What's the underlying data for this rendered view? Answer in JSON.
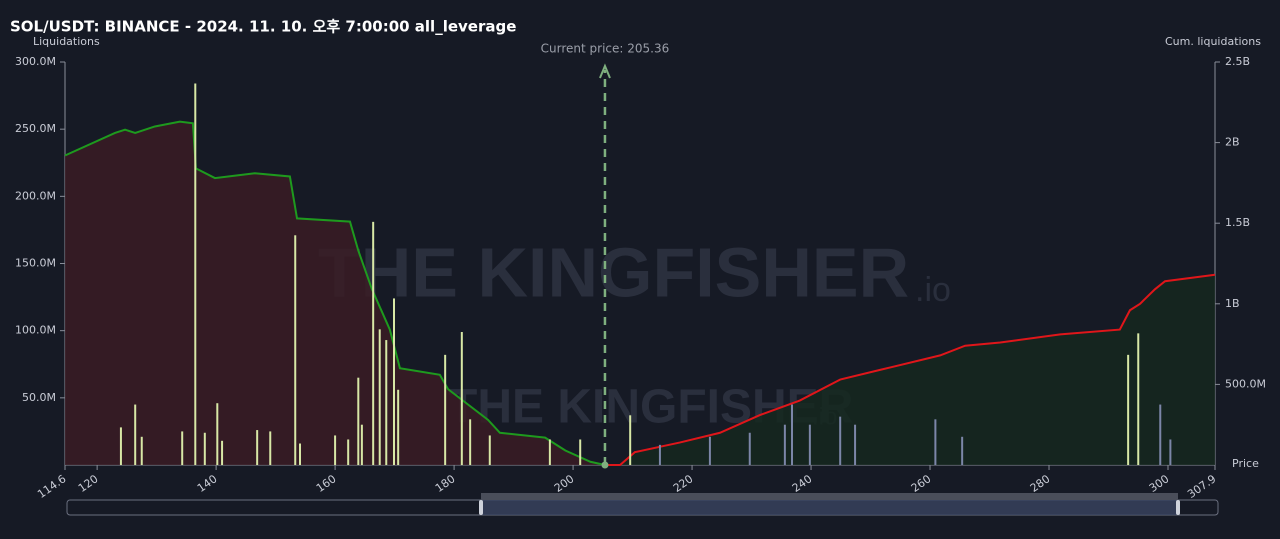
{
  "chart_data": {
    "type": "bar",
    "title": "SOL/USDT: BINANCE - 2024. 11. 10. 오후 7:00:00 all_leverage",
    "y_label": "Liquidations",
    "y2_label": "Cum. liquidations",
    "x_label": "Price",
    "annotation": "Current price: 205.36",
    "current_price": 205.36,
    "watermark": "THE KINGFISHER",
    "watermark_suffix": ".io",
    "xlim": [
      114.6,
      307.9
    ],
    "xticks": [
      114.6,
      120,
      140,
      160,
      180,
      200,
      220,
      240,
      260,
      280,
      300,
      307.9
    ],
    "ylim": [
      0,
      300000000
    ],
    "yticks": [
      {
        "value": 50000000,
        "label": "50.0M"
      },
      {
        "value": 100000000,
        "label": "100.0M"
      },
      {
        "value": 150000000,
        "label": "150.0M"
      },
      {
        "value": 200000000,
        "label": "200.0M"
      },
      {
        "value": 250000000,
        "label": "250.0M"
      },
      {
        "value": 300000000,
        "label": "300.0M"
      }
    ],
    "y2lim": [
      0,
      2500000000
    ],
    "y2ticks": [
      {
        "value": 500000000,
        "label": "500.0M"
      },
      {
        "value": 1000000000,
        "label": "1B"
      },
      {
        "value": 1500000000,
        "label": "1.5B"
      },
      {
        "value": 2000000000,
        "label": "2B"
      },
      {
        "value": 2500000000,
        "label": "2.5B"
      }
    ],
    "series": [
      {
        "type": "bar",
        "color": "#d8e8a6",
        "x": [
          124.0,
          126.4,
          127.5,
          134.3,
          136.5,
          138.1,
          140.2,
          141.0,
          146.9,
          149.1,
          153.3,
          154.1,
          160.0,
          162.2,
          163.9,
          164.5,
          166.4,
          167.5,
          168.6,
          169.9,
          170.6,
          178.5,
          181.3,
          182.7,
          186.0,
          196.1,
          201.2,
          209.6,
          293.3,
          295.0
        ],
        "values": [
          28000000,
          45000000,
          21000000,
          25000000,
          284000000,
          24000000,
          46000000,
          18000000,
          26000000,
          25000000,
          171000000,
          16000000,
          22000000,
          19000000,
          65000000,
          30000000,
          181000000,
          101000000,
          93000000,
          124000000,
          56000000,
          82000000,
          99000000,
          34000000,
          22000000,
          19000000,
          19000000,
          37000000,
          82000000,
          98000000
        ]
      },
      {
        "type": "bar",
        "color": "#7c86a8",
        "x": [
          214.6,
          223.0,
          229.7,
          235.6,
          236.8,
          239.8,
          244.9,
          247.4,
          260.9,
          265.4,
          298.7,
          300.4
        ],
        "values": [
          15000000,
          21000000,
          24000000,
          30000000,
          45000000,
          30000000,
          36000000,
          30000000,
          34000000,
          21000000,
          45000000,
          19000000
        ]
      },
      {
        "type": "line",
        "axis": "y2",
        "color": "#1e9a1e",
        "fill": "#3a1c24",
        "x": [
          114.6,
          123.0,
          124.7,
          126.4,
          129.7,
          133.9,
          136.1,
          136.6,
          139.8,
          146.5,
          152.4,
          153.6,
          162.5,
          163.9,
          166.2,
          169.2,
          170.9,
          177.6,
          179.0,
          185.7,
          187.7,
          195.3,
          198.7,
          202.9,
          205.36
        ],
        "values": [
          1920000000,
          2060000000,
          2080000000,
          2060000000,
          2100000000,
          2130000000,
          2120000000,
          1840000000,
          1780000000,
          1810000000,
          1790000000,
          1530000000,
          1510000000,
          1330000000,
          1090000000,
          840000000,
          600000000,
          560000000,
          470000000,
          280000000,
          200000000,
          170000000,
          90000000,
          20000000,
          0
        ]
      },
      {
        "type": "line",
        "axis": "y2",
        "color": "#e0161a",
        "fill": "#15281f",
        "x": [
          205.36,
          207.9,
          210.4,
          218.0,
          224.7,
          231.4,
          238.1,
          244.9,
          251.6,
          261.7,
          265.9,
          271.8,
          281.9,
          291.9,
          293.6,
          295.3,
          297.8,
          299.5,
          303.7,
          307.9
        ],
        "values": [
          0,
          0,
          80000000,
          140000000,
          200000000,
          310000000,
          400000000,
          530000000,
          590000000,
          680000000,
          740000000,
          760000000,
          810000000,
          840000000,
          960000000,
          1000000000,
          1090000000,
          1140000000,
          1160000000,
          1180000000
        ]
      }
    ]
  }
}
